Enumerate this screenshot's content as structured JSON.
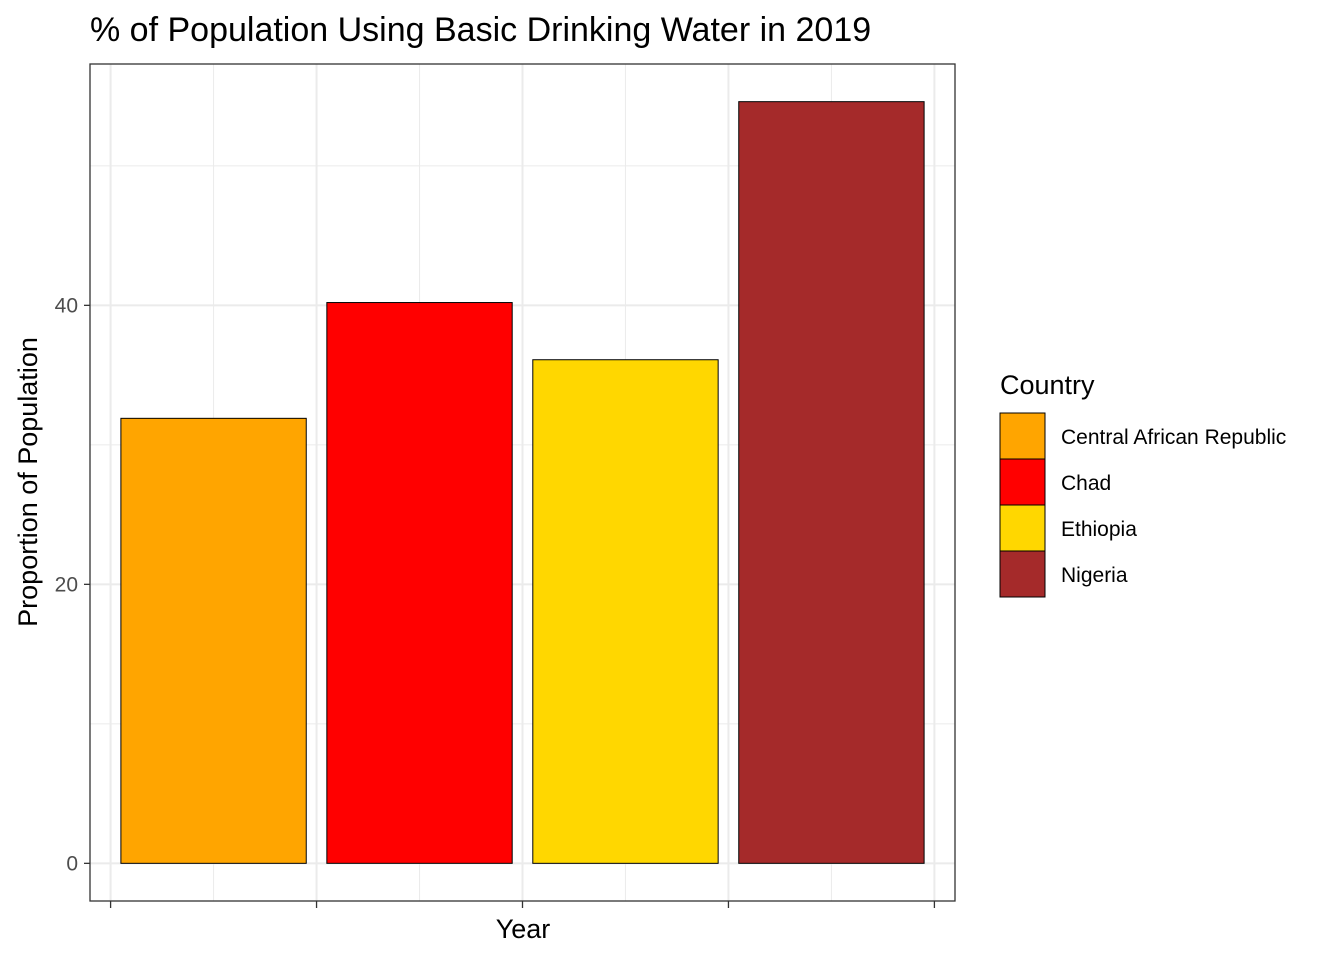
{
  "chart_data": {
    "type": "bar",
    "title": "% of Population Using Basic Drinking Water in 2019",
    "xlabel": "Year",
    "ylabel": "Proportion of Population",
    "categories": [
      "Central African Republic",
      "Chad",
      "Ethiopia",
      "Nigeria"
    ],
    "values": [
      31.9,
      40.2,
      36.1,
      54.6
    ],
    "colors": [
      "#FFA500",
      "#FF0000",
      "#FFD700",
      "#A52A2A"
    ],
    "ylim": [
      -2.7,
      57.3
    ],
    "yticks": [
      0,
      20,
      40
    ],
    "ytick_labels": [
      "0",
      "20",
      "40"
    ],
    "grid": true,
    "legend": {
      "title": "Country",
      "position": "right",
      "entries": [
        "Central African Republic",
        "Chad",
        "Ethiopia",
        "Nigeria"
      ]
    }
  }
}
